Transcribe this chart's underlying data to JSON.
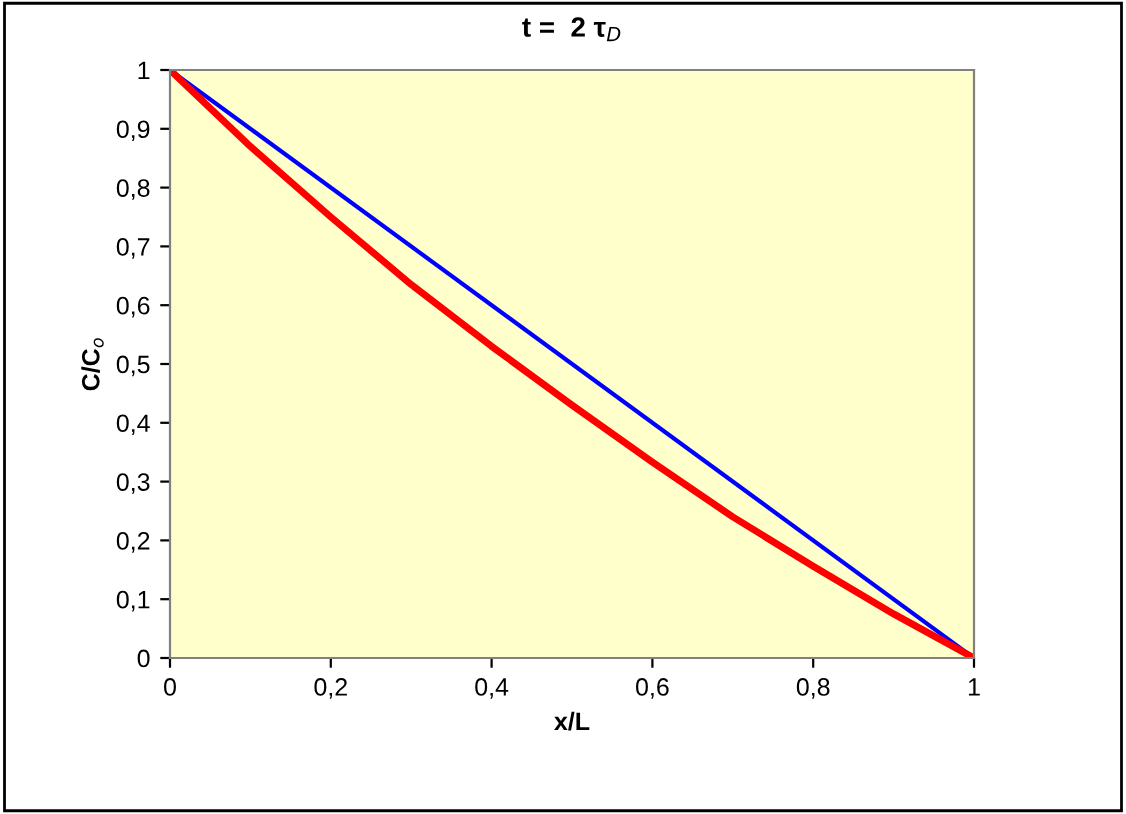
{
  "chart_data": {
    "type": "line",
    "title": "t =  2 τ$_{D}$",
    "xlabel": "x/L",
    "ylabel": "C/C$_{o}$",
    "series": [
      {
        "color": "#0000ff",
        "x": [
          0,
          1
        ],
        "values": [
          1,
          0
        ]
      },
      {
        "color": "#ff0000",
        "x": [
          0,
          0.1,
          0.2,
          0.3,
          0.4,
          0.5,
          0.6,
          0.7,
          0.8,
          0.9,
          1
        ],
        "values": [
          1,
          0.87,
          0.75,
          0.635,
          0.53,
          0.43,
          0.333,
          0.24,
          0.156,
          0.075,
          0
        ]
      }
    ],
    "xlim": [
      0,
      1
    ],
    "ylim": [
      0,
      1
    ],
    "xticks": [
      0,
      {
        "value": 0.2,
        "label": "0,2"
      },
      {
        "value": 0.4,
        "label": "0,4"
      },
      {
        "value": 0.6,
        "label": "0,6"
      },
      {
        "value": 0.8,
        "label": "0,8"
      },
      1
    ],
    "yticks": [
      0,
      {
        "value": 0.1,
        "label": "0,1"
      },
      {
        "value": 0.2,
        "label": "0,2"
      },
      {
        "value": 0.3,
        "label": "0,3"
      },
      {
        "value": 0.4,
        "label": "0,4"
      },
      {
        "value": 0.5,
        "label": "0,5"
      },
      {
        "value": 0.6,
        "label": "0,6"
      },
      {
        "value": 0.7,
        "label": "0,7"
      },
      {
        "value": 0.8,
        "label": "0,8"
      },
      {
        "value": 0.9,
        "label": "0,9"
      },
      1
    ],
    "grid": false,
    "legend": false
  }
}
